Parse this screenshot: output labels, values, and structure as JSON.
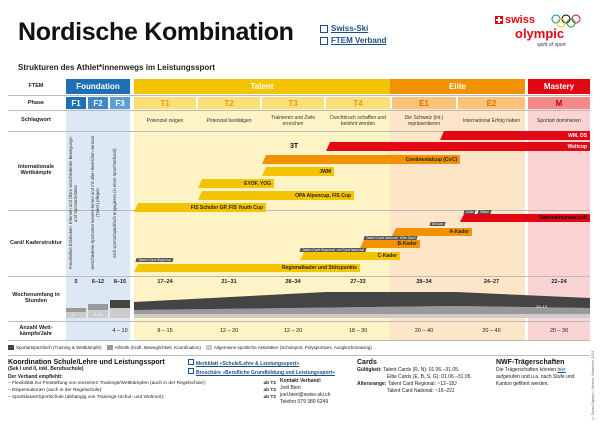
{
  "header": {
    "title": "Nordische Kombination",
    "link_1": "Swiss-Ski",
    "link_2": "FTEM Verband",
    "logo_swiss": "swiss",
    "logo_olympic": "olympic",
    "logo_tagline": "spirit of sport"
  },
  "subtitle": "Strukturen des Athlet*innenwegs im Leistungssport",
  "row_labels": {
    "ftem": "FTEM",
    "phase": "Phase",
    "schlagwort": "Schlagwort",
    "wettkaempfe": "Internationale Wettkämpfe",
    "kader": "Card/ Kaderstruktur",
    "wochenumfang": "Wochenumfang in Stunden",
    "anzahl": "Anzahl Wett- kämpfe/Jahr"
  },
  "ftem_groups": {
    "foundation": "Foundation",
    "talent": "Talent",
    "elite": "Elite",
    "mastery": "Mastery"
  },
  "phases": [
    "F1",
    "F2",
    "F3",
    "T1",
    "T2",
    "T3",
    "T4",
    "E1",
    "E2",
    "M"
  ],
  "schlagwort": [
    "Potenziel zeigen",
    "Potenzial bestätigen",
    "Trainieren und Ziele erreichen",
    "Durchbruch schaffen und belohnt werden",
    "Die Schweiz (int.) repräsentieren",
    "International Erfolg haben",
    "Sportart dominieren"
  ],
  "foundation_texts": [
    "Freudvolles Entdecken, Erlernen und Üben verschiedenen Bewegungs- und Sportaktivitäten",
    "Verschiedene Sportarten kennen lernen und mit allen Bereichen vertraut (Talent) pflegen",
    "Sich sportartspezifisch engagieren (in einer Sport/Verband)"
  ],
  "competitions": [
    "WM, OS",
    "Weltcup",
    "Continentalcup (CoC)",
    "JWM",
    "EYOF, YOG",
    "OPA Alpencup, FIS Cup",
    "FIS Schüler GP, FIS Youth Cup"
  ],
  "kader": [
    "Nationalmannschaft",
    "A-Kader",
    "B-Kader",
    "C-Kader",
    "Regionalkader und Stützpunkte"
  ],
  "card_tags": [
    "Swiss Olympic Card",
    "Elite Card",
    "Talent Card National",
    "Talent Card Regional",
    "Elite Card",
    "Gold",
    "Silber",
    "Bronze"
  ],
  "wochenumfang": [
    "5",
    "6–12",
    "8–15",
    "17–24",
    "21–31",
    "28–34",
    "27–33",
    "28–34",
    "24–27",
    "22–24"
  ],
  "wochen_small": [
    "1",
    "3–5",
    "",
    "10–13"
  ],
  "anzahl": [
    "",
    "",
    "4 – 10",
    "8 – 15",
    "12 – 20",
    "12 – 20",
    "18 – 30",
    "20 – 40",
    "20 – 40",
    "20 – 30"
  ],
  "legend": [
    "Sportartspezifisch (Training & Wettkämpfe)",
    "Athletik (Kraft, Beweglichkeit, Koordination)",
    "Allgemeine sportliche Aktivitäten (Schulsport, Polysportives, Ausgleichstraining)"
  ],
  "koordination": {
    "title": "Koordination Schule/Lehre und Leistungssport",
    "subtitle": "(Sek I und II, inkl. Berufsschule)",
    "link_1": "Merkblatt «Schule/Lehre & Leistungssport»",
    "link_2": "Broschüre «Berufliche Grundbildung und Leistungssport»",
    "empfiehlt_label": "Der Verband empfiehlt:",
    "items": [
      {
        "text": "– Flexibilität zur Freistellung von einzelnen Trainings/Wettkämpfen (auch in der Regelschule):",
        "value": "ab T1"
      },
      {
        "text": "– Dispensationen (auch in der Regelschule):",
        "value": "ab T2"
      },
      {
        "text": "– Sportklasse/Sportschule (abhängig von Trainings-/Schul- und Wohnort):",
        "value": "ab T2"
      }
    ],
    "kontakt_label": "Kontakt Verband:",
    "kontakt_name": "Joël Bieri",
    "kontakt_email": "joel.bieri@swiss-ski.ch",
    "kontakt_phone": "Telefon 079 380 6249"
  },
  "cards": {
    "title": "Cards",
    "gueltigkeit_label": "Gültigkeit:",
    "gueltigkeit_1": "Talent Cards (R, N):",
    "gueltigkeit_1_val": "01.06.–31.05.",
    "gueltigkeit_2": "Elite Cards (E, B, S, G):",
    "gueltigkeit_2_val": "01.06.–31.05.",
    "alter_label": "Altersrange:",
    "alter_1": "Talent Card Regional:",
    "alter_1_val": "~12–18J",
    "alter_2": "Talent Card National:",
    "alter_2_val": "~16–22J"
  },
  "nwf": {
    "title": "NWF-Trägerschaften",
    "text_1": "Die Trägerschaften können",
    "link": "hier",
    "text_2": "aufgerufen und u.a. nach Stufe und Kanton gefiltert werden."
  },
  "side_note": "© Swiss Olympic / Version: November 2024",
  "colors": {
    "foundation": "#1f6fb5",
    "foundation_light": "#dce9f5",
    "talent": "#f5c400",
    "talent_light": "#fdf3c4",
    "elite": "#f39200",
    "elite_light": "#fde6c7",
    "mastery": "#e30613",
    "mastery_light": "#f9d4d2"
  }
}
